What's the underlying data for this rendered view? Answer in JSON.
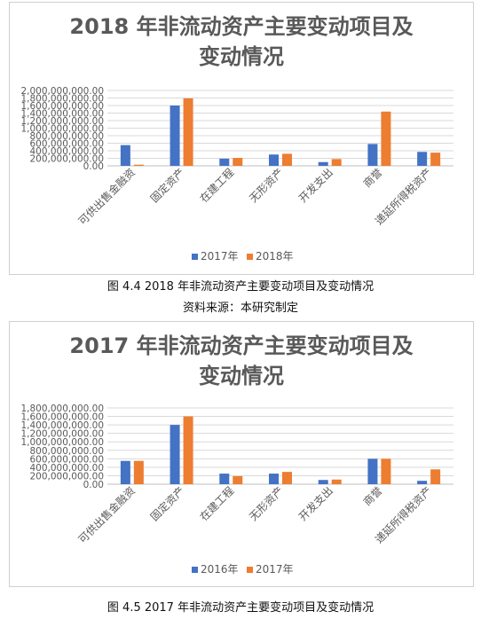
{
  "chart_data": [
    {
      "type": "bar",
      "title_line1": "2018 年非流动资产主要变动项目及",
      "title_line2": "变动情况",
      "categories": [
        "可供出售金融资",
        "固定资产",
        "在建工程",
        "无形资产",
        "开发支出",
        "商誉",
        "递延所得税资产"
      ],
      "series": [
        {
          "name": "2017年",
          "color": "#4472C4",
          "values": [
            550000000,
            1600000000,
            190000000,
            300000000,
            100000000,
            580000000,
            370000000
          ]
        },
        {
          "name": "2018年",
          "color": "#ED7D31",
          "values": [
            30000000,
            1790000000,
            210000000,
            320000000,
            180000000,
            1440000000,
            350000000
          ]
        }
      ],
      "ylim": [
        0,
        2000000000
      ],
      "yticks": [
        "0.00",
        "200,000,000.00",
        "400,000,000.00",
        "600,000,000.00",
        "800,000,000.00",
        "1,000,000,000.00",
        "1,200,000,000.00",
        "1,400,000,000.00",
        "1,600,000,000.00",
        "1,800,000,000.00",
        "2,000,000,000.00"
      ],
      "grid": true,
      "legend": "bottom"
    },
    {
      "type": "bar",
      "title_line1": "2017 年非流动资产主要变动项目及",
      "title_line2": "变动情况",
      "categories": [
        "可供出售金融资",
        "固定资产",
        "在建工程",
        "无形资产",
        "开发支出",
        "商誉",
        "递延所得税资产"
      ],
      "series": [
        {
          "name": "2016年",
          "color": "#4472C4",
          "values": [
            550000000,
            1400000000,
            250000000,
            250000000,
            100000000,
            600000000,
            80000000
          ]
        },
        {
          "name": "2017年",
          "color": "#ED7D31",
          "values": [
            550000000,
            1600000000,
            190000000,
            290000000,
            110000000,
            600000000,
            350000000
          ]
        }
      ],
      "ylim": [
        0,
        1800000000
      ],
      "yticks": [
        "0.00",
        "200,000,000.00",
        "400,000,000.00",
        "600,000,000.00",
        "800,000,000.00",
        "1,000,000,000.00",
        "1,200,000,000.00",
        "1,400,000,000.00",
        "1,600,000,000.00",
        "1,800,000,000.00"
      ],
      "grid": true,
      "legend": "bottom"
    }
  ],
  "captions": {
    "fig1": "图 4.4 2018 年非流动资产主要变动项目及变动情况",
    "source": "资料来源：本研究制定",
    "fig2": "图  4.5 2017 年非流动资产主要变动项目及变动情况"
  }
}
